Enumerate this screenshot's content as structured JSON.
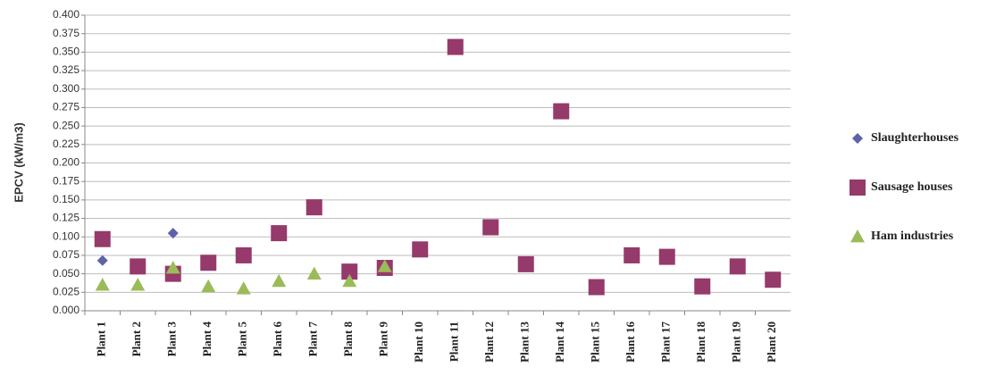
{
  "chart_data": {
    "type": "scatter",
    "y_label": "EPCV (kW/m3)",
    "categories": [
      "Plant 1",
      "Plant 2",
      "Plant 3",
      "Plant 4",
      "Plant 5",
      "Plant 6",
      "Plant 7",
      "Plant 8",
      "Plant 9",
      "Plant 10",
      "Plant 11",
      "Plant 12",
      "Plant 13",
      "Plant 14",
      "Plant 15",
      "Plant 16",
      "Plant 17",
      "Plant 18",
      "Plant 19",
      "Plant 20"
    ],
    "series": [
      {
        "name": "Slaughterhouses",
        "color": "#5f62a8",
        "marker": "diamond",
        "values": [
          0.068,
          null,
          0.105,
          null,
          null,
          null,
          null,
          null,
          null,
          null,
          null,
          null,
          null,
          null,
          null,
          null,
          null,
          null,
          null,
          null
        ]
      },
      {
        "name": "Sausage houses",
        "color": "#953a6a",
        "marker": "square",
        "values": [
          0.097,
          0.06,
          0.05,
          0.065,
          0.075,
          0.105,
          0.14,
          0.053,
          0.058,
          0.083,
          0.357,
          0.113,
          0.063,
          0.27,
          0.032,
          0.075,
          0.073,
          0.033,
          0.06,
          0.042
        ]
      },
      {
        "name": "Ham industries",
        "color": "#9bbb59",
        "marker": "triangle",
        "values": [
          0.035,
          0.035,
          0.058,
          0.033,
          0.03,
          0.04,
          0.05,
          0.04,
          0.06,
          null,
          null,
          null,
          null,
          null,
          null,
          null,
          null,
          null,
          null,
          null
        ]
      }
    ],
    "ylim": [
      0,
      0.4
    ],
    "yticks": [
      {
        "value": 0,
        "label": "0.000"
      },
      {
        "value": 0.025,
        "label": "0.025"
      },
      {
        "value": 0.05,
        "label": "0.050"
      },
      {
        "value": 0.075,
        "label": "0.075"
      },
      {
        "value": 0.1,
        "label": "0.100"
      },
      {
        "value": 0.125,
        "label": "0.125"
      },
      {
        "value": 0.15,
        "label": "0.150"
      },
      {
        "value": 0.175,
        "label": "0.175"
      },
      {
        "value": 0.2,
        "label": "0.200"
      },
      {
        "value": 0.225,
        "label": "0.225"
      },
      {
        "value": 0.25,
        "label": "0.250"
      },
      {
        "value": 0.275,
        "label": "0.275"
      },
      {
        "value": 0.3,
        "label": "0.300"
      },
      {
        "value": 0.325,
        "label": "0.325"
      },
      {
        "value": 0.35,
        "label": "0.350"
      },
      {
        "value": 0.375,
        "label": "0.375"
      },
      {
        "value": 0.4,
        "label": "0.400"
      }
    ],
    "grid": true,
    "legend": "right"
  }
}
